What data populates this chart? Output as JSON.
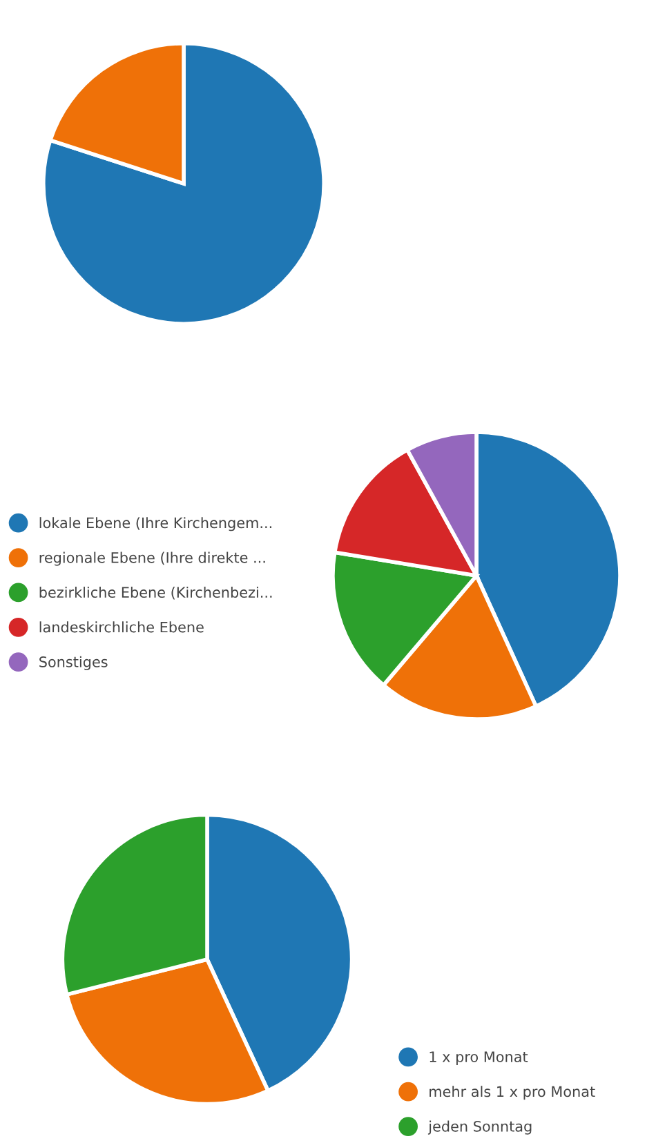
{
  "chart_data": [
    {
      "type": "pie",
      "categories": [
        null,
        null
      ],
      "values": [
        80,
        20
      ],
      "colors": [
        "#1f77b4",
        "#ef7108"
      ],
      "legend": false
    },
    {
      "type": "pie",
      "categories": [
        "lokale Ebene (Ihre Kirchengem...",
        "regionale Ebene (Ihre direkte ...",
        "bezirkliche Ebene (Kirchenbezi...",
        "landeskirchliche Ebene",
        "Sonstiges"
      ],
      "values": [
        43.2,
        18.0,
        16.4,
        14.4,
        8.0
      ],
      "colors": [
        "#1f77b4",
        "#ef7108",
        "#2ca02c",
        "#d62728",
        "#9467bd"
      ],
      "legend": "left"
    },
    {
      "type": "pie",
      "categories": [
        "1 x pro Monat",
        "mehr als 1 x pro Monat",
        "jeden Sonntag"
      ],
      "values": [
        43.1,
        28.0,
        28.9
      ],
      "colors": [
        "#1f77b4",
        "#ef7108",
        "#2ca02c"
      ],
      "legend": "bottom right"
    }
  ]
}
